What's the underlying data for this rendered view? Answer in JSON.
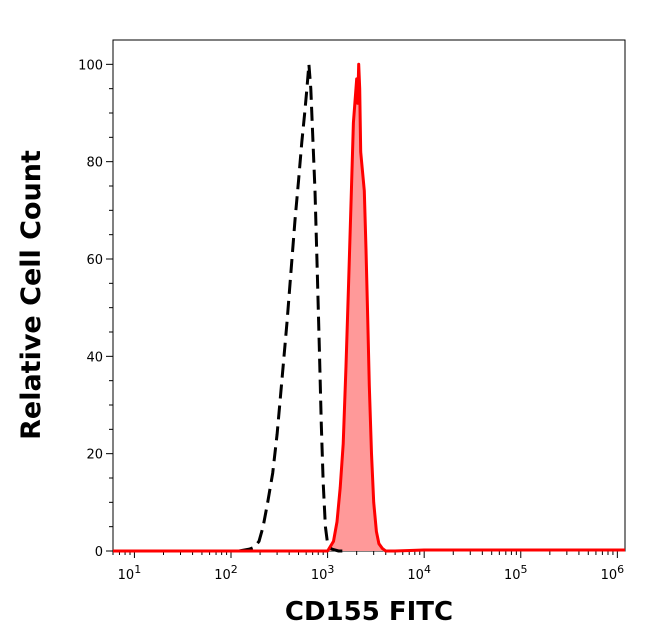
{
  "chart_data": {
    "type": "area",
    "xlabel": "CD155 FITC",
    "ylabel": "Relative Cell Count",
    "x_scale": "log",
    "xlim": [
      6,
      1200000
    ],
    "ylim": [
      0,
      105
    ],
    "x_ticks": [
      {
        "value": 10,
        "base": "10",
        "exp": "1"
      },
      {
        "value": 100,
        "base": "10",
        "exp": "2"
      },
      {
        "value": 1000,
        "base": "10",
        "exp": "3"
      },
      {
        "value": 10000,
        "base": "10",
        "exp": "4"
      },
      {
        "value": 100000,
        "base": "10",
        "exp": "5"
      },
      {
        "value": 1000000,
        "base": "10",
        "exp": "6"
      }
    ],
    "y_ticks": [
      0,
      20,
      40,
      60,
      80,
      100
    ],
    "grid": false,
    "legend": "none",
    "series": [
      {
        "style": "dashed",
        "color": "#000000",
        "filled": false,
        "x": [
          6,
          120,
          155,
          175,
          195,
          215,
          240,
          270,
          300,
          340,
          380,
          420,
          460,
          500,
          540,
          580,
          610,
          640,
          670,
          700,
          740,
          780,
          820,
          860,
          900,
          950,
          1000,
          1100,
          1300,
          1500
        ],
        "y": [
          0,
          0,
          0.4,
          0.8,
          2,
          5,
          10,
          16,
          24,
          36,
          47,
          58,
          68,
          76,
          84,
          90,
          95,
          100,
          95,
          86,
          74,
          58,
          42,
          26,
          14,
          5,
          1.5,
          0.4,
          0,
          0
        ]
      },
      {
        "style": "solid",
        "color": "#ff0000",
        "fill": "#ff9999",
        "filled": true,
        "x": [
          6,
          1000,
          1150,
          1250,
          1350,
          1450,
          1550,
          1650,
          1750,
          1850,
          1950,
          2000,
          2050,
          2100,
          2150,
          2200,
          2250,
          2300,
          2400,
          2500,
          2600,
          2700,
          2850,
          3000,
          3200,
          3400,
          3700,
          4000,
          5000,
          10000,
          100000,
          1200000
        ],
        "y": [
          0,
          0,
          2,
          6,
          13,
          22,
          38,
          55,
          72,
          88,
          94,
          97,
          92,
          100,
          95,
          82,
          80,
          78,
          74,
          62,
          48,
          34,
          20,
          10,
          4,
          1.5,
          0.5,
          0,
          0,
          0.2,
          0.2,
          0.2
        ]
      }
    ]
  }
}
